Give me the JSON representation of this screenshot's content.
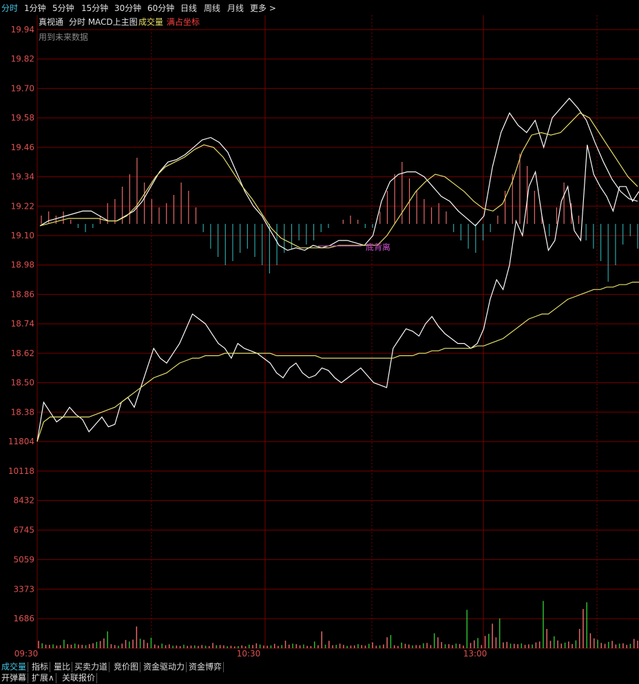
{
  "period_tabs": [
    "分时",
    "1分钟",
    "5分钟",
    "15分钟",
    "30分钟",
    "60分钟",
    "日线",
    "周线",
    "月线",
    "更多 >"
  ],
  "active_tab": "分时",
  "indicator_line": {
    "source": "真视通",
    "name": "分时 MACD上主图",
    "volume": "成交量",
    "coord": "满占坐标"
  },
  "note": "用到未来数据",
  "divergence_label": "底背离",
  "bottom_tabs_row1": [
    "成交量",
    "指标",
    "量比",
    "买卖力道",
    "竞价图",
    "资金驱动力",
    "资金博弈"
  ],
  "bottom_tabs_row2": [
    "开弹幕",
    "扩展∧",
    "关联报价"
  ],
  "colors": {
    "grid": "#7a0000",
    "price_axis": "#e05050",
    "price_line": "#ffffff",
    "avg_line": "#e8e06a",
    "macd_up": "#e86a6a",
    "macd_down": "#2aa5a5",
    "vol_up": "#e86a6a",
    "vol_down": "#2ebd2e",
    "accent": "#46c6e6",
    "divergence": "#d050d0"
  },
  "chart_data": {
    "type": "line",
    "x_labels": [
      "09:30",
      "10:30",
      "13:00"
    ],
    "price_axis": {
      "ticks": [
        "19.94",
        "19.82",
        "19.70",
        "19.58",
        "19.46",
        "19.34",
        "19.22",
        "19.10",
        "18.98",
        "18.86",
        "18.74",
        "18.62",
        "18.50",
        "18.38"
      ],
      "range": [
        18.26,
        19.94
      ]
    },
    "volume_axis": {
      "ticks": [
        "11804",
        "10118",
        "8432",
        "6745",
        "5059",
        "3373",
        "1686"
      ],
      "range": [
        0,
        11804
      ]
    },
    "price": [
      18.26,
      18.42,
      18.38,
      18.34,
      18.36,
      18.4,
      18.37,
      18.35,
      18.3,
      18.33,
      18.36,
      18.32,
      18.33,
      18.42,
      18.44,
      18.4,
      18.48,
      18.56,
      18.64,
      18.6,
      18.58,
      18.62,
      18.66,
      18.72,
      18.78,
      18.76,
      18.74,
      18.7,
      18.66,
      18.64,
      18.6,
      18.66,
      18.64,
      18.63,
      18.62,
      18.6,
      18.58,
      18.54,
      18.52,
      18.56,
      18.58,
      18.54,
      18.52,
      18.53,
      18.56,
      18.55,
      18.52,
      18.5,
      18.52,
      18.54,
      18.56,
      18.53,
      18.5,
      18.49,
      18.48,
      18.64,
      18.68,
      18.72,
      18.71,
      18.69,
      18.74,
      18.77,
      18.73,
      18.7,
      18.68,
      18.66,
      18.66,
      18.64,
      18.66,
      18.72,
      18.84,
      18.92,
      18.88,
      18.98,
      19.16,
      19.1,
      19.3,
      19.36,
      19.18,
      19.04,
      19.08,
      19.24,
      19.3,
      19.12,
      19.08,
      19.47,
      19.35,
      19.3,
      19.26,
      19.2,
      19.3,
      19.3,
      19.24,
      19.28
    ],
    "avg": [
      18.26,
      18.34,
      18.36,
      18.36,
      18.36,
      18.36,
      18.36,
      18.36,
      18.36,
      18.37,
      18.38,
      18.39,
      18.4,
      18.42,
      18.44,
      18.46,
      18.48,
      18.5,
      18.52,
      18.53,
      18.54,
      18.56,
      18.58,
      18.59,
      18.6,
      18.6,
      18.61,
      18.61,
      18.61,
      18.62,
      18.62,
      18.62,
      18.62,
      18.62,
      18.62,
      18.62,
      18.62,
      18.61,
      18.61,
      18.61,
      18.61,
      18.61,
      18.61,
      18.61,
      18.6,
      18.6,
      18.6,
      18.6,
      18.6,
      18.6,
      18.6,
      18.6,
      18.6,
      18.6,
      18.6,
      18.6,
      18.61,
      18.61,
      18.61,
      18.62,
      18.62,
      18.63,
      18.63,
      18.64,
      18.64,
      18.64,
      18.64,
      18.64,
      18.65,
      18.65,
      18.66,
      18.67,
      18.68,
      18.7,
      18.72,
      18.74,
      18.76,
      18.77,
      18.78,
      18.78,
      18.8,
      18.82,
      18.84,
      18.85,
      18.86,
      18.87,
      18.88,
      18.88,
      18.89,
      18.89,
      18.9,
      18.9,
      18.91,
      18.91
    ],
    "dif": [
      19.14,
      19.16,
      19.17,
      19.18,
      19.19,
      19.2,
      19.2,
      19.18,
      19.16,
      19.16,
      19.18,
      19.2,
      19.24,
      19.3,
      19.36,
      19.4,
      19.41,
      19.43,
      19.46,
      19.49,
      19.5,
      19.48,
      19.44,
      19.36,
      19.28,
      19.22,
      19.18,
      19.12,
      19.06,
      19.04,
      19.05,
      19.04,
      19.06,
      19.05,
      19.06,
      19.08,
      19.08,
      19.07,
      19.06,
      19.1,
      19.24,
      19.32,
      19.35,
      19.36,
      19.36,
      19.34,
      19.3,
      19.26,
      19.24,
      19.2,
      19.17,
      19.14,
      19.18,
      19.38,
      19.52,
      19.6,
      19.55,
      19.52,
      19.57,
      19.46,
      19.58,
      19.62,
      19.66,
      19.62,
      19.57,
      19.48,
      19.4,
      19.33,
      19.28,
      19.25,
      19.24
    ],
    "dea": [
      19.14,
      19.15,
      19.16,
      19.17,
      19.17,
      19.17,
      19.17,
      19.16,
      19.16,
      19.18,
      19.22,
      19.28,
      19.34,
      19.38,
      19.4,
      19.42,
      19.45,
      19.47,
      19.46,
      19.42,
      19.36,
      19.3,
      19.25,
      19.19,
      19.13,
      19.09,
      19.07,
      19.05,
      19.05,
      19.05,
      19.05,
      19.06,
      19.06,
      19.06,
      19.06,
      19.06,
      19.1,
      19.16,
      19.22,
      19.28,
      19.32,
      19.35,
      19.34,
      19.31,
      19.28,
      19.24,
      19.21,
      19.2,
      19.23,
      19.32,
      19.44,
      19.51,
      19.52,
      19.51,
      19.52,
      19.56,
      19.6,
      19.58,
      19.52,
      19.46,
      19.4,
      19.34,
      19.3
    ],
    "macd": [
      0.02,
      0.03,
      0.02,
      0.03,
      0.01,
      -0.01,
      -0.02,
      -0.01,
      0.02,
      0.05,
      0.06,
      0.09,
      0.12,
      0.16,
      0.1,
      0.06,
      0.04,
      0.05,
      0.07,
      0.1,
      0.08,
      0.04,
      -0.02,
      -0.06,
      -0.08,
      -0.1,
      -0.09,
      -0.07,
      -0.06,
      -0.08,
      -0.1,
      -0.12,
      -0.1,
      -0.07,
      -0.06,
      -0.04,
      -0.05,
      -0.04,
      -0.02,
      -0.01,
      0.0,
      0.01,
      0.02,
      0.01,
      -0.01,
      -0.01,
      0.03,
      0.08,
      0.12,
      0.15,
      0.11,
      0.08,
      0.06,
      0.04,
      0.05,
      0.03,
      -0.02,
      -0.04,
      -0.06,
      -0.07,
      -0.04,
      -0.02,
      0.02,
      0.08,
      0.12,
      0.17,
      0.14,
      0.08,
      0.02,
      -0.03,
      0.04,
      0.1,
      0.05,
      0.02,
      -0.04,
      -0.06,
      -0.09,
      -0.14,
      -0.1,
      -0.05,
      -0.03,
      -0.06
    ],
    "volume": [
      420,
      280,
      200,
      190,
      220,
      150,
      170,
      480,
      230,
      200,
      260,
      210,
      190,
      170,
      230,
      280,
      360,
      410,
      560,
      960,
      230,
      180,
      140,
      260,
      470,
      380,
      490,
      1240,
      540,
      480,
      300,
      600,
      210,
      150,
      260,
      170,
      220,
      140,
      150,
      120,
      200,
      130,
      150,
      160,
      130,
      180,
      140,
      120,
      300,
      170,
      180,
      160,
      110,
      140,
      100,
      120,
      160,
      110,
      200,
      180,
      280,
      210,
      150,
      140,
      160,
      250,
      130,
      180,
      430,
      200,
      260,
      230,
      160,
      210,
      130,
      120,
      380,
      170,
      960,
      200,
      420,
      170,
      190,
      260,
      190,
      130,
      150,
      160,
      230,
      180,
      150,
      250,
      330,
      140,
      160,
      210,
      620,
      750,
      170,
      130,
      320,
      250,
      210,
      160,
      180,
      170,
      280,
      300,
      180,
      850,
      620,
      350,
      220,
      230,
      180,
      260,
      240,
      150,
      2190,
      300,
      450,
      580,
      180,
      700,
      820,
      1400,
      620,
      1700,
      330,
      360,
      260,
      250,
      230,
      270,
      190,
      220,
      210,
      330,
      380,
      2700,
      1100,
      420,
      680,
      440,
      260,
      320,
      380,
      240,
      450,
      1100,
      2240,
      2620,
      850,
      560,
      480,
      300,
      250,
      360,
      420,
      210,
      260,
      280,
      190,
      250,
      530,
      430
    ],
    "volume_up_mask": "mixed"
  }
}
